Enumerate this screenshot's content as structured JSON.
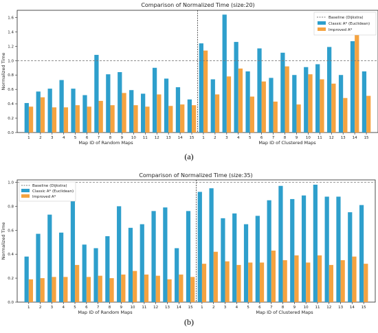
{
  "colors": {
    "classic": "#2E9FCC",
    "improved": "#F5A340",
    "baseline": "#777777",
    "separator": "#333333"
  },
  "captions": [
    "(a)",
    "(b)"
  ],
  "chart_data": [
    {
      "type": "bar",
      "title": "Comparison of Normalized Time (size:20)",
      "ylabel": "Normalized Time",
      "xlabel_left": "Map ID of Random Maps",
      "xlabel_right": "Map ID of Clustered Maps",
      "categories": [
        "1",
        "2",
        "3",
        "4",
        "5",
        "6",
        "7",
        "8",
        "9",
        "10",
        "11",
        "12",
        "13",
        "14",
        "15",
        "1",
        "2",
        "3",
        "4",
        "5",
        "6",
        "7",
        "8",
        "9",
        "10",
        "11",
        "12",
        "13",
        "14",
        "15"
      ],
      "ylim": [
        0,
        1.7
      ],
      "yticks": [
        "0.0",
        "0.2",
        "0.4",
        "0.6",
        "0.8",
        "1.0",
        "1.2",
        "1.4",
        "1.6"
      ],
      "baseline_value": 1.0,
      "legend_position": "top-right",
      "legend": [
        "Baseline (Dijkstra)",
        "Classic A* (Euclidean)",
        "Improved A*"
      ],
      "series": [
        {
          "name": "Classic A* (Euclidean)",
          "values": [
            0.41,
            0.57,
            0.61,
            0.73,
            0.61,
            0.52,
            1.08,
            0.81,
            0.84,
            0.59,
            0.54,
            0.9,
            0.75,
            0.63,
            0.46,
            1.24,
            0.74,
            1.64,
            1.26,
            0.85,
            1.17,
            0.76,
            1.11,
            0.8,
            0.91,
            0.95,
            1.19,
            0.8,
            1.27,
            0.85
          ]
        },
        {
          "name": "Improved A*",
          "values": [
            0.36,
            0.49,
            0.35,
            0.35,
            0.38,
            0.36,
            0.44,
            0.38,
            0.55,
            0.38,
            0.36,
            0.53,
            0.37,
            0.39,
            0.38,
            1.14,
            0.53,
            0.78,
            0.89,
            0.5,
            0.71,
            0.43,
            0.92,
            0.39,
            0.81,
            0.74,
            0.68,
            0.48,
            1.36,
            0.51
          ]
        }
      ]
    },
    {
      "type": "bar",
      "title": "Comparison of Normalized Time (size:35)",
      "ylabel": "Normalized Time",
      "xlabel_left": "Map ID of Random Maps",
      "xlabel_right": "Map ID of Clustered Maps",
      "categories": [
        "1",
        "2",
        "3",
        "4",
        "5",
        "6",
        "7",
        "8",
        "9",
        "10",
        "11",
        "12",
        "13",
        "14",
        "15",
        "1",
        "2",
        "3",
        "4",
        "5",
        "6",
        "7",
        "8",
        "9",
        "10",
        "11",
        "12",
        "13",
        "14",
        "15"
      ],
      "ylim": [
        0,
        1.02
      ],
      "yticks": [
        "0.0",
        "0.2",
        "0.4",
        "0.6",
        "0.8",
        "1.0"
      ],
      "baseline_value": 1.0,
      "legend_position": "top-left",
      "legend": [
        "Baseline (Dijkstra)",
        "Classic A* (Euclidean)",
        "Improved A*"
      ],
      "series": [
        {
          "name": "Classic A* (Euclidean)",
          "values": [
            0.38,
            0.57,
            0.73,
            0.58,
            0.85,
            0.48,
            0.45,
            0.55,
            0.8,
            0.62,
            0.65,
            0.76,
            0.79,
            0.45,
            0.76,
            0.92,
            0.95,
            0.7,
            0.74,
            0.65,
            0.72,
            0.85,
            0.97,
            0.86,
            0.89,
            0.98,
            0.88,
            0.88,
            0.75,
            0.81
          ]
        },
        {
          "name": "Improved A*",
          "values": [
            0.19,
            0.2,
            0.21,
            0.21,
            0.31,
            0.21,
            0.22,
            0.2,
            0.23,
            0.26,
            0.23,
            0.22,
            0.19,
            0.23,
            0.21,
            0.32,
            0.42,
            0.34,
            0.31,
            0.33,
            0.33,
            0.43,
            0.35,
            0.39,
            0.33,
            0.39,
            0.31,
            0.35,
            0.38,
            0.32
          ]
        }
      ]
    }
  ]
}
